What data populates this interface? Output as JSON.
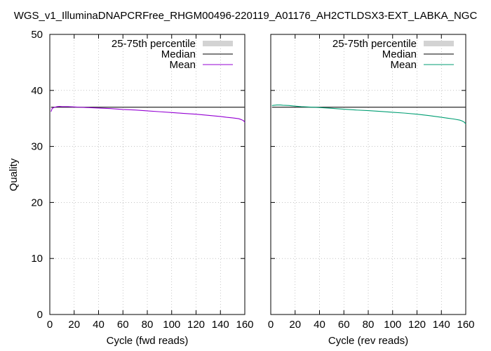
{
  "title": "WGS_v1_IlluminaDNAPCRFree_RHGM00496-220119_A01176_AH2CTLDSX3-EXT_LABKA_NGC",
  "colors": {
    "percentile_band": "#d3d3d3",
    "median": "#000000",
    "mean_fwd": "#9400d3",
    "mean_rev": "#009e73",
    "grid": "#a0a0a0"
  },
  "chart_data": [
    {
      "type": "line",
      "xlabel": "Cycle (fwd reads)",
      "ylabel": "Quality",
      "xlim": [
        0,
        160
      ],
      "ylim": [
        0,
        50
      ],
      "xticks": [
        "0",
        "20",
        "40",
        "60",
        "80",
        "100",
        "120",
        "140",
        "160"
      ],
      "yticks": [
        "0",
        "10",
        "20",
        "30",
        "40",
        "50"
      ],
      "grid": true,
      "legend_position": "top-right",
      "series": [
        {
          "name": "25-75th percentile",
          "kind": "band",
          "x": [
            1,
            160
          ],
          "low": [
            37,
            37
          ],
          "high": [
            37,
            37
          ]
        },
        {
          "name": "Median",
          "x": [
            1,
            160
          ],
          "values": [
            37,
            37
          ]
        },
        {
          "name": "Mean",
          "x": [
            1,
            2,
            4,
            6,
            8,
            10,
            15,
            20,
            25,
            30,
            40,
            50,
            60,
            70,
            80,
            90,
            100,
            110,
            120,
            130,
            140,
            145,
            150,
            155,
            157,
            159,
            160
          ],
          "values": [
            36.2,
            36.8,
            37.0,
            37.1,
            37.15,
            37.1,
            37.1,
            37.05,
            37.0,
            36.95,
            36.85,
            36.75,
            36.6,
            36.5,
            36.35,
            36.2,
            36.05,
            35.9,
            35.75,
            35.55,
            35.35,
            35.2,
            35.1,
            34.95,
            34.8,
            34.6,
            34.3
          ]
        }
      ]
    },
    {
      "type": "line",
      "xlabel": "Cycle (rev reads)",
      "xlim": [
        0,
        160
      ],
      "ylim": [
        0,
        50
      ],
      "xticks": [
        "0",
        "20",
        "40",
        "60",
        "80",
        "100",
        "120",
        "140",
        "160"
      ],
      "grid": true,
      "legend_position": "top-right",
      "series": [
        {
          "name": "25-75th percentile",
          "kind": "band",
          "x": [
            1,
            160
          ],
          "low": [
            37,
            37
          ],
          "high": [
            37,
            37
          ]
        },
        {
          "name": "Median",
          "x": [
            1,
            160
          ],
          "values": [
            37,
            37
          ]
        },
        {
          "name": "Mean",
          "x": [
            1,
            3,
            5,
            8,
            10,
            15,
            20,
            25,
            30,
            40,
            50,
            60,
            70,
            80,
            90,
            100,
            110,
            120,
            130,
            140,
            145,
            150,
            155,
            157,
            159,
            160
          ],
          "values": [
            37.3,
            37.35,
            37.4,
            37.4,
            37.35,
            37.3,
            37.2,
            37.1,
            37.05,
            36.95,
            36.8,
            36.65,
            36.5,
            36.4,
            36.25,
            36.1,
            35.95,
            35.75,
            35.5,
            35.2,
            35.05,
            34.9,
            34.7,
            34.55,
            34.3,
            34.0
          ]
        }
      ]
    }
  ]
}
